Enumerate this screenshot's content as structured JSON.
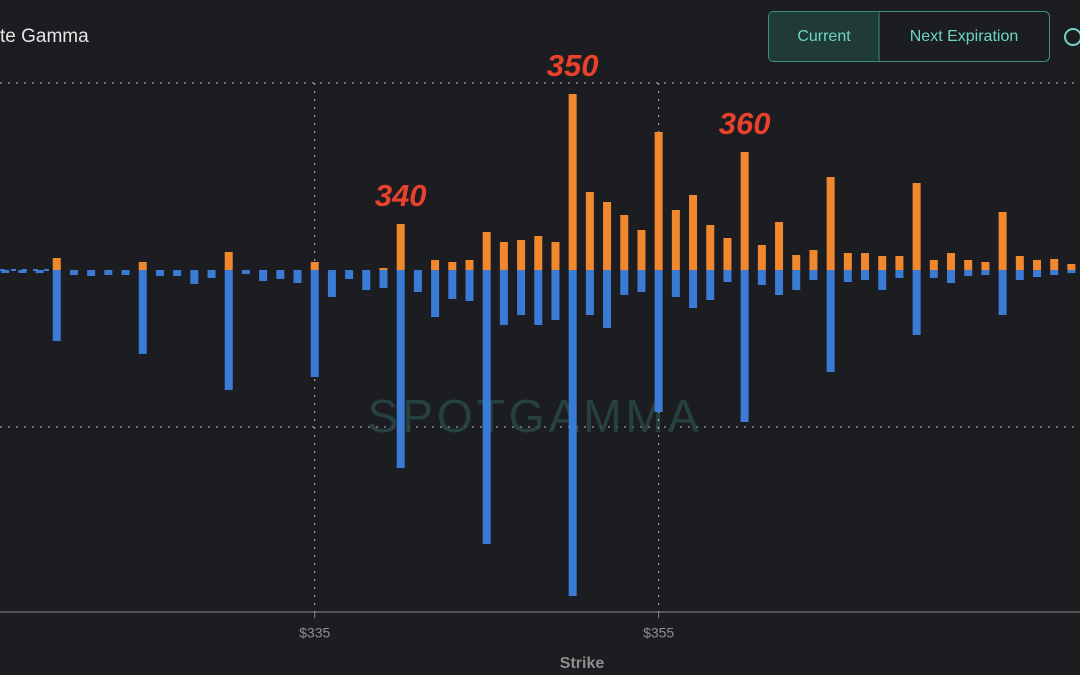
{
  "header": {
    "title": "te Gamma",
    "buttons": [
      "Current",
      "Next Expiration"
    ]
  },
  "watermark": "SPOTGAMMA",
  "chart_data": {
    "type": "bar",
    "x_label": "Strike",
    "x": [
      317,
      318,
      319,
      320,
      321,
      322,
      323,
      324,
      325,
      326,
      327,
      328,
      329,
      330,
      331,
      332,
      333,
      334,
      335,
      336,
      337,
      338,
      339,
      340,
      341,
      342,
      343,
      344,
      345,
      346,
      347,
      348,
      349,
      350,
      351,
      352,
      353,
      354,
      355,
      356,
      357,
      358,
      359,
      360,
      361,
      362,
      363,
      364,
      365,
      366,
      367,
      368,
      369,
      370,
      371,
      372,
      373,
      374,
      375,
      376,
      377,
      378,
      379
    ],
    "series": [
      {
        "color": "#f0892d",
        "values": [
          0,
          0,
          0,
          12,
          0,
          0,
          0,
          0,
          8,
          0,
          0,
          0,
          0,
          18,
          0,
          0,
          0,
          0,
          8,
          0,
          0,
          0,
          2,
          46,
          0,
          10,
          8,
          10,
          38,
          28,
          30,
          34,
          28,
          176,
          78,
          68,
          55,
          40,
          138,
          60,
          75,
          45,
          32,
          118,
          25,
          48,
          15,
          20,
          93,
          17,
          17,
          14,
          14,
          87,
          10,
          17,
          10,
          8,
          58,
          14,
          10,
          11,
          6
        ]
      },
      {
        "color": "#3a7bd5",
        "values": [
          -3,
          -3,
          -3,
          -71,
          -5,
          -6,
          -5,
          -5,
          -84,
          -6,
          -6,
          -14,
          -8,
          -120,
          -4,
          -11,
          -9,
          -13,
          -107,
          -27,
          -9,
          -20,
          -18,
          -198,
          -22,
          -47,
          -29,
          -31,
          -274,
          -55,
          -45,
          -55,
          -50,
          -326,
          -45,
          -58,
          -25,
          -22,
          -142,
          -27,
          -38,
          -30,
          -12,
          -152,
          -15,
          -25,
          -20,
          -10,
          -102,
          -12,
          -10,
          -20,
          -8,
          -65,
          -8,
          -13,
          -6,
          -5,
          -45,
          -10,
          -7,
          -5,
          -3
        ]
      }
    ],
    "annotations": [
      {
        "text": "340",
        "x": 340
      },
      {
        "text": "350",
        "x": 350
      },
      {
        "text": "360",
        "x": 360
      }
    ],
    "xlim": [
      316.7,
      379.5
    ],
    "ylim": [
      -342,
      195
    ],
    "xticks": [
      {
        "value": 335,
        "label": "$335"
      },
      {
        "value": 355,
        "label": "$355"
      }
    ]
  }
}
